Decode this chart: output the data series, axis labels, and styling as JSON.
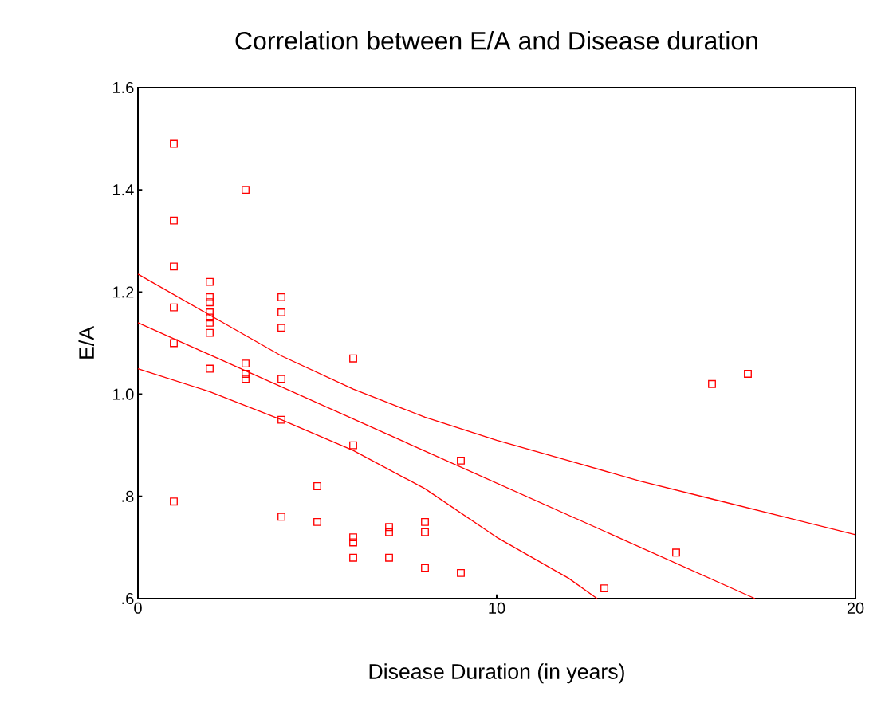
{
  "chart_data": {
    "type": "scatter",
    "title": "Correlation between E/A and Disease duration",
    "xlabel": "Disease Duration (in years)",
    "ylabel": "E/A",
    "xlim": [
      0,
      20
    ],
    "ylim": [
      0.6,
      1.6
    ],
    "xticks": [
      0,
      10,
      20
    ],
    "yticks": [
      {
        "value": 0.6,
        "label": ".6"
      },
      {
        "value": 0.8,
        "label": ".8"
      },
      {
        "value": 1.0,
        "label": "1.0"
      },
      {
        "value": 1.2,
        "label": "1.2"
      },
      {
        "value": 1.4,
        "label": "1.4"
      },
      {
        "value": 1.6,
        "label": "1.6"
      }
    ],
    "series": [
      {
        "color": "#ff0000",
        "marker": "square",
        "x": [
          1,
          1,
          1,
          1,
          1,
          1,
          2,
          2,
          2,
          2,
          2,
          2,
          2,
          2,
          3,
          3,
          3,
          3,
          4,
          4,
          4,
          4,
          4,
          4,
          5,
          5,
          6,
          6,
          6,
          6,
          6,
          7,
          7,
          7,
          8,
          8,
          8,
          9,
          9,
          13,
          15,
          16,
          17
        ],
        "values": [
          1.49,
          1.34,
          1.25,
          1.17,
          1.1,
          0.79,
          1.22,
          1.19,
          1.18,
          1.16,
          1.15,
          1.14,
          1.12,
          1.05,
          1.4,
          1.06,
          1.04,
          1.03,
          1.19,
          1.16,
          1.13,
          1.03,
          0.95,
          0.76,
          0.82,
          0.75,
          1.07,
          0.9,
          0.72,
          0.71,
          0.68,
          0.74,
          0.73,
          0.68,
          0.75,
          0.73,
          0.66,
          0.87,
          0.65,
          0.62,
          0.69,
          1.02,
          1.04
        ]
      },
      {
        "type": "line",
        "color": "#ff0000",
        "x": [
          0,
          17.2
        ],
        "values": [
          1.14,
          0.6
        ]
      },
      {
        "type": "line",
        "color": "#ff0000",
        "x": [
          0,
          2,
          4,
          6,
          8,
          10,
          12,
          14,
          16,
          18,
          20
        ],
        "values": [
          1.235,
          1.155,
          1.075,
          1.01,
          0.955,
          0.91,
          0.87,
          0.83,
          0.795,
          0.76,
          0.725
        ]
      },
      {
        "type": "line",
        "color": "#ff0000",
        "x": [
          0,
          2,
          4,
          6,
          8,
          10,
          12,
          12.8
        ],
        "values": [
          1.05,
          1.005,
          0.95,
          0.89,
          0.815,
          0.72,
          0.64,
          0.6
        ]
      }
    ]
  }
}
